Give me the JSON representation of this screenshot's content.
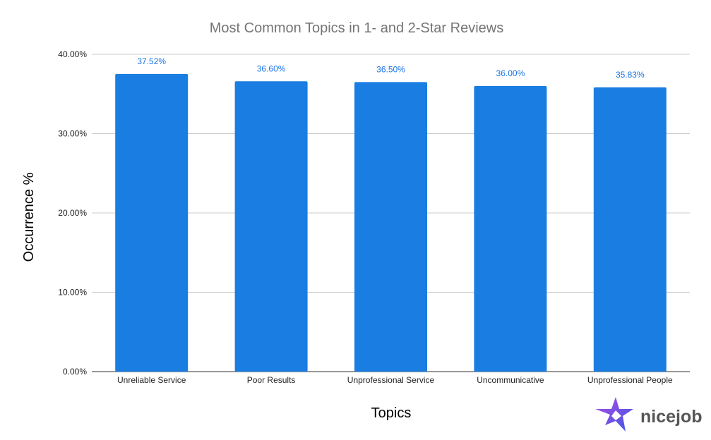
{
  "chart_data": {
    "type": "bar",
    "title": "Most Common Topics in 1- and 2-Star Reviews",
    "xlabel": "Topics",
    "ylabel": "Occurrence %",
    "categories": [
      "Unreliable Service",
      "Poor Results",
      "Unprofessional Service",
      "Uncommunicative",
      "Unprofessional People"
    ],
    "values": [
      37.52,
      36.6,
      36.5,
      36.0,
      35.83
    ],
    "data_labels": [
      "37.52%",
      "36.60%",
      "36.50%",
      "36.00%",
      "35.83%"
    ],
    "ylim": [
      0,
      40
    ],
    "yticks": [
      0,
      10,
      20,
      30,
      40
    ],
    "ytick_labels": [
      "0.00%",
      "10.00%",
      "20.00%",
      "30.00%",
      "40.00%"
    ],
    "grid": true,
    "legend": "none",
    "bar_color": "#1a7de1",
    "label_color": "#1a73e8"
  },
  "logo": {
    "text": "nicejob",
    "icon": "star-logo-icon"
  }
}
